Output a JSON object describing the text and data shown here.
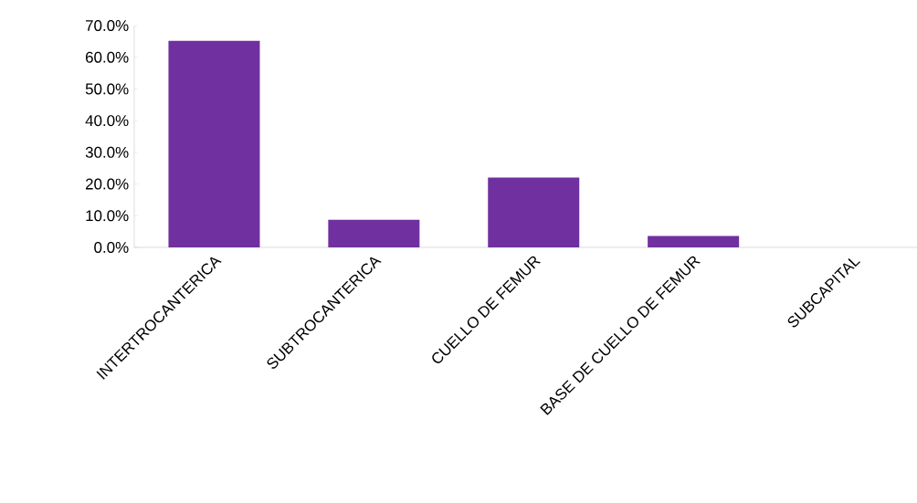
{
  "chart_data": {
    "type": "bar",
    "categories": [
      "INTERTROCANTERICA",
      "SUBTROCANTERICA",
      "CUELLO  DE FEMUR",
      "BASE DE CUELLO DE FEMUR",
      "SUBCAPITAL"
    ],
    "values": [
      65.2,
      8.7,
      22.0,
      3.6,
      0
    ],
    "color": "#7030a0",
    "ylim": [
      0,
      70
    ],
    "yticks": [
      {
        "value": 0,
        "label": "0.0%"
      },
      {
        "value": 10,
        "label": "10.0%"
      },
      {
        "value": 20,
        "label": "20.0%"
      },
      {
        "value": 30,
        "label": "30.0%"
      },
      {
        "value": 40,
        "label": "40.0%"
      },
      {
        "value": 50,
        "label": "50.0%"
      },
      {
        "value": 60,
        "label": "60.0%"
      },
      {
        "value": 70,
        "label": "70.0%"
      }
    ],
    "grid": false
  }
}
